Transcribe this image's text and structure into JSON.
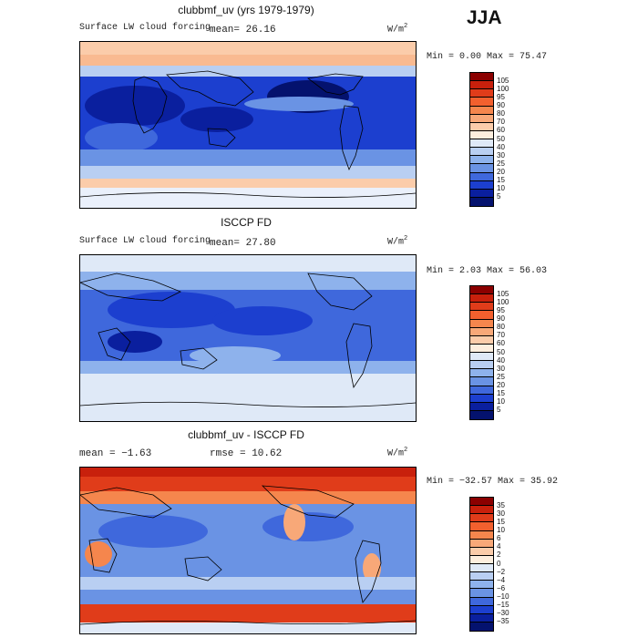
{
  "season": "JJA",
  "panels": [
    {
      "title": "clubbmf_uv (yrs 1979-1979)",
      "left_label": "Surface LW cloud forcing",
      "mean_text": "mean=  26.16",
      "units_base": "W/m",
      "units_exp": "2",
      "minmax": "Min =   0.00 Max =  75.47",
      "ticks": [
        "105",
        "100",
        "95",
        "90",
        "80",
        "70",
        "60",
        "50",
        "40",
        "30",
        "25",
        "20",
        "15",
        "10",
        "5"
      ],
      "colors": [
        "#8b0000",
        "#c8200c",
        "#e03c1a",
        "#f2602e",
        "#f5864d",
        "#f8a878",
        "#fbccaa",
        "#fdeede",
        "#dfe9f7",
        "#b9cff2",
        "#8eb2ec",
        "#6a93e4",
        "#3f68dc",
        "#1c3fcf",
        "#0a1f9e",
        "#04126e"
      ]
    },
    {
      "title": "ISCCP FD",
      "left_label": "Surface LW cloud forcing",
      "mean_text": "mean=  27.80",
      "units_base": "W/m",
      "units_exp": "2",
      "minmax": "Min =   2.03 Max =  56.03",
      "ticks": [
        "105",
        "100",
        "95",
        "90",
        "80",
        "70",
        "60",
        "50",
        "40",
        "30",
        "25",
        "20",
        "15",
        "10",
        "5"
      ],
      "colors": [
        "#8b0000",
        "#c8200c",
        "#e03c1a",
        "#f2602e",
        "#f5864d",
        "#f8a878",
        "#fbccaa",
        "#fdeede",
        "#dfe9f7",
        "#b9cff2",
        "#8eb2ec",
        "#6a93e4",
        "#3f68dc",
        "#1c3fcf",
        "#0a1f9e",
        "#04126e"
      ]
    },
    {
      "title": "clubbmf_uv - ISCCP FD",
      "left_label": "mean =  −1.63",
      "mean_text": "rmse =  10.62",
      "units_base": "W/m",
      "units_exp": "2",
      "minmax": "Min = −32.57 Max =  35.92",
      "ticks": [
        "35",
        "30",
        "15",
        "10",
        "6",
        "4",
        "2",
        "0",
        "−2",
        "−4",
        "−6",
        "−10",
        "−15",
        "−30",
        "−35"
      ],
      "colors": [
        "#8b0000",
        "#c8200c",
        "#e03c1a",
        "#f2602e",
        "#f5864d",
        "#f8a878",
        "#fbccaa",
        "#fdeede",
        "#dfe9f7",
        "#b9cff2",
        "#8eb2ec",
        "#6a93e4",
        "#3f68dc",
        "#1c3fcf",
        "#0a1f9e",
        "#04126e"
      ]
    }
  ]
}
